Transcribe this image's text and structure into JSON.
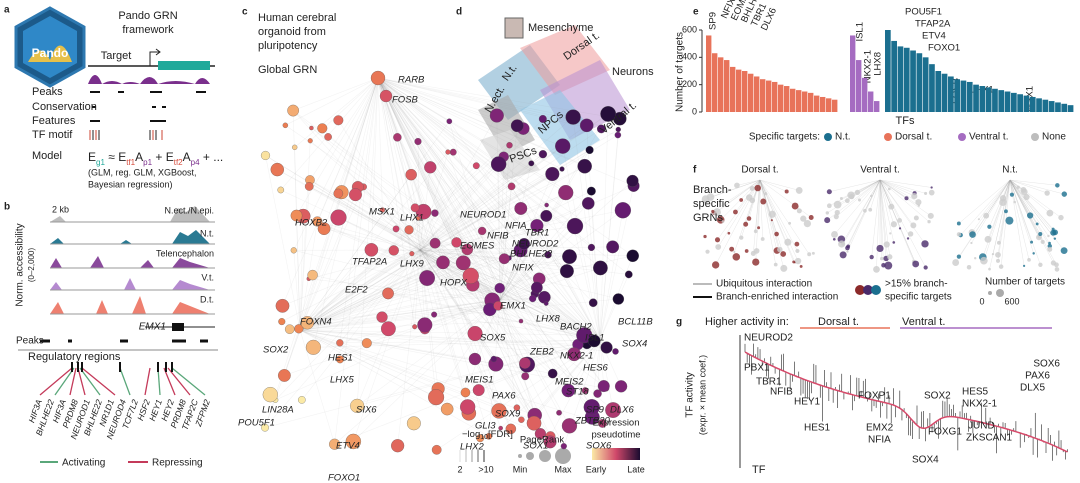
{
  "panel_a": {
    "letter": "a",
    "logo": "Pando",
    "title": [
      "Pando GRN",
      "framework"
    ],
    "target": "Target",
    "rows": [
      "Peaks",
      "Conservation",
      "Features",
      "TF motif",
      "Model"
    ],
    "equation": [
      "E",
      "g1",
      " ≈ ",
      "E",
      "tf1",
      "A",
      "p1",
      " + ",
      "E",
      "tf2",
      "A",
      "p4",
      " + ..."
    ],
    "note": [
      "(GLM, reg. GLM, XGBoost,",
      "Bayesian regression)"
    ]
  },
  "panel_b": {
    "letter": "b",
    "scale": "2 kb",
    "tracks": [
      "N.ect./N.epi.",
      "N.t.",
      "Telencephalon",
      "V.t.",
      "D.t."
    ],
    "y_label": "Norm. accessibility",
    "y_range": "(0–2,000)",
    "gene": "EMX1",
    "peaks": "Peaks",
    "regions_title": "Regulatory regions",
    "tfs": [
      "HIF3A",
      "BHLHE22",
      "HIF3A",
      "PRDM8",
      "NEUROD1",
      "BHLHE22",
      "NR1D1",
      "NEUROD4",
      "TCF7L2",
      "HSF2",
      "HEY1",
      "HEY2",
      "PRDM8",
      "TFAP2C",
      "ZFPM2"
    ],
    "legend": [
      "Activating",
      "Repressing"
    ]
  },
  "panel_c": {
    "letter": "c",
    "title": [
      "Human cerebral",
      "organoid from",
      "pluripotency"
    ],
    "subtitle": "Global GRN",
    "genes": [
      "RARB",
      "FOSB",
      "MSX1",
      "LHX1",
      "NEUROD1",
      "NFIA",
      "TBR1",
      "HOXB2",
      "NFIB",
      "NEUROD2",
      "BHLHE22",
      "EOMES",
      "TFAP2A",
      "LHX9",
      "HOPX",
      "NFIX",
      "EMX1",
      "E2F2",
      "LHX8",
      "BACH2",
      "ISL1",
      "BCL11B",
      "FOXN4",
      "SOX5",
      "ZEB2",
      "NKX2-1",
      "HES6",
      "SOX4",
      "SOX2",
      "HES1",
      "MEIS2",
      "MEIS1",
      "PAX6",
      "ST18",
      "SP9",
      "DLX6",
      "LHX5",
      "SIX6",
      "SOX9",
      "ZBTB20",
      "GLI3",
      "LIN28A",
      "ETV4",
      "LHX2",
      "SOX1",
      "SOX6",
      "POU5F1",
      "FOXO1"
    ],
    "legend": {
      "fdr": [
        "−log",
        "10",
        "[FDR]"
      ],
      "fdr_min": "2",
      "fdr_max": ">10",
      "pagerank": "PageRank",
      "min": "Min",
      "max": "Max",
      "pseudotime": [
        "Expression",
        "pseudotime"
      ],
      "early": "Early",
      "late": "Late"
    }
  },
  "panel_d": {
    "letter": "d",
    "labels": [
      "Mesenchyme",
      "N.t.",
      "Dorsal t.",
      "Neurons",
      "N.ect.",
      "Ventral t.",
      "NPCs",
      "PSCs"
    ]
  },
  "panel_e": {
    "letter": "e",
    "y_label": "Number of targets",
    "ylim": [
      0,
      600
    ],
    "yticks": [
      0,
      200,
      400,
      600
    ],
    "x_label": "TFs",
    "genes": [
      "SP9",
      "NFIX",
      "EOMES",
      "BHLHE22",
      "TBR1",
      "DLX6",
      "ISL1",
      "NKX2-1",
      "LHX8",
      "POU5F1",
      "TFAP2A",
      "ETV4",
      "FOXO1",
      "FOSB",
      "LHX1",
      "MSX1"
    ],
    "legend_title": "Specific targets:",
    "legend": [
      {
        "label": "N.t.",
        "color": "#1b6f8f"
      },
      {
        "label": "Dorsal t.",
        "color": "#e8735a"
      },
      {
        "label": "Ventral t.",
        "color": "#a56cc1"
      },
      {
        "label": "None",
        "color": "#bdbdbd"
      }
    ],
    "groups": [
      {
        "color": "#e8735a",
        "values": [
          560,
          430,
          400,
          380,
          330,
          310,
          300,
          280,
          260,
          240,
          230,
          220,
          200,
          190,
          170,
          160,
          150,
          140,
          120,
          110,
          100,
          90
        ]
      },
      {
        "color": "#a56cc1",
        "values": [
          560,
          380,
          250,
          150,
          80
        ]
      },
      {
        "color": "#1b6f8f",
        "values": [
          600,
          520,
          480,
          470,
          450,
          430,
          400,
          350,
          300,
          280,
          260,
          240,
          230,
          220,
          200,
          190,
          180,
          170,
          160,
          150,
          140,
          130,
          120,
          110,
          100,
          90,
          80,
          70,
          60,
          50
        ]
      }
    ]
  },
  "panel_f": {
    "letter": "f",
    "title": [
      "Branch-",
      "specific",
      "GRNs"
    ],
    "graphs": [
      "Dorsal t.",
      "Ventral t.",
      "N.t."
    ],
    "legend": {
      "ubiquitous": "Ubiquitous interaction",
      "enriched": "Branch-enriched interaction",
      "specific": [
        ">15% branch-",
        "specific targets"
      ],
      "size_title": "Number of targets",
      "size_min": "0",
      "size_max": "600"
    }
  },
  "panel_g": {
    "letter": "g",
    "header": "Higher activity in:",
    "groups": [
      "Dorsal t.",
      "Ventral t."
    ],
    "y_label": [
      "TF activity",
      "(expr. × mean coef.)"
    ],
    "x_label": "TF",
    "genes": [
      "NEUROD2",
      "PBX1",
      "TBR1",
      "NFIB",
      "HEY1",
      "HES1",
      "FOXP1",
      "EMX2",
      "NFIA",
      "SOX4",
      "SOX2",
      "FOXG1",
      "HES5",
      "NKX2-1",
      "JUND",
      "ZKSCAN1",
      "SOX6",
      "PAX6",
      "DLX5"
    ]
  }
}
